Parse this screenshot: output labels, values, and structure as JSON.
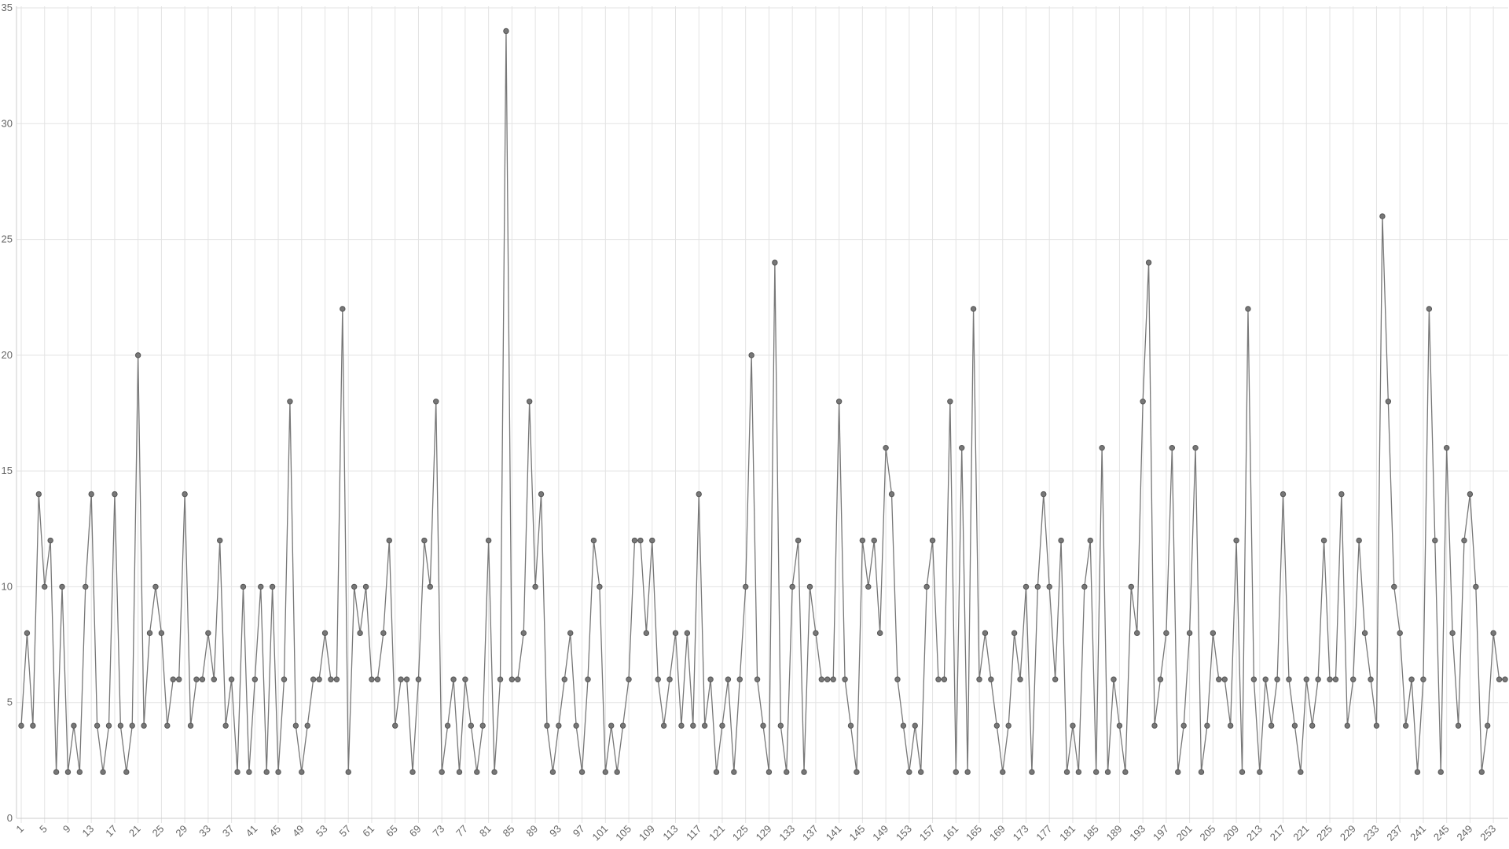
{
  "chart_data": {
    "type": "line",
    "x": [
      1,
      2,
      3,
      4,
      5,
      6,
      7,
      8,
      9,
      10,
      11,
      12,
      13,
      14,
      15,
      16,
      17,
      18,
      19,
      20,
      21,
      22,
      23,
      24,
      25,
      26,
      27,
      28,
      29,
      30,
      31,
      32,
      33,
      34,
      35,
      36,
      37,
      38,
      39,
      40,
      41,
      42,
      43,
      44,
      45,
      46,
      47,
      48,
      49,
      50,
      51,
      52,
      53,
      54,
      55,
      56,
      57,
      58,
      59,
      60,
      61,
      62,
      63,
      64,
      65,
      66,
      67,
      68,
      69,
      70,
      71,
      72,
      73,
      74,
      75,
      76,
      77,
      78,
      79,
      80,
      81,
      82,
      83,
      84,
      85,
      86,
      87,
      88,
      89,
      90,
      91,
      92,
      93,
      94,
      95,
      96,
      97,
      98,
      99,
      100,
      101,
      102,
      103,
      104,
      105,
      106,
      107,
      108,
      109,
      110,
      111,
      112,
      113,
      114,
      115,
      116,
      117,
      118,
      119,
      120,
      121,
      122,
      123,
      124,
      125,
      126,
      127,
      128,
      129,
      130,
      131,
      132,
      133,
      134,
      135,
      136,
      137,
      138,
      139,
      140,
      141,
      142,
      143,
      144,
      145,
      146,
      147,
      148,
      149,
      150,
      151,
      152,
      153,
      154,
      155,
      156,
      157,
      158,
      159,
      160,
      161,
      162,
      163,
      164,
      165,
      166,
      167,
      168,
      169,
      170,
      171,
      172,
      173,
      174,
      175,
      176,
      177,
      178,
      179,
      180,
      181,
      182,
      183,
      184,
      185,
      186,
      187,
      188,
      189,
      190,
      191,
      192,
      193,
      194,
      195,
      196,
      197,
      198,
      199,
      200,
      201,
      202,
      203,
      204,
      205,
      206,
      207,
      208,
      209,
      210,
      211,
      212,
      213,
      214,
      215,
      216,
      217,
      218,
      219,
      220,
      221,
      222,
      223,
      224,
      225,
      226,
      227,
      228,
      229,
      230,
      231,
      232,
      233,
      234,
      235,
      236,
      237,
      238,
      239,
      240,
      241,
      242,
      243,
      244,
      245,
      246,
      247,
      248,
      249,
      250,
      251,
      252,
      253,
      254,
      255
    ],
    "series": [
      {
        "color": "#777777",
        "values": [
          4,
          8,
          4,
          14,
          10,
          12,
          2,
          10,
          2,
          4,
          2,
          10,
          14,
          4,
          2,
          4,
          14,
          4,
          2,
          4,
          20,
          4,
          8,
          10,
          8,
          4,
          6,
          6,
          14,
          4,
          6,
          6,
          8,
          6,
          12,
          4,
          6,
          2,
          10,
          2,
          6,
          10,
          2,
          10,
          2,
          6,
          18,
          4,
          2,
          4,
          6,
          6,
          8,
          6,
          6,
          22,
          2,
          10,
          8,
          10,
          6,
          6,
          8,
          12,
          4,
          6,
          6,
          2,
          6,
          12,
          10,
          18,
          2,
          4,
          6,
          2,
          6,
          4,
          2,
          4,
          12,
          2,
          6,
          34,
          6,
          6,
          8,
          18,
          10,
          14,
          4,
          2,
          4,
          6,
          8,
          4,
          2,
          6,
          12,
          10,
          2,
          4,
          2,
          4,
          6,
          12,
          12,
          8,
          12,
          6,
          4,
          6,
          8,
          4,
          8,
          4,
          14,
          4,
          6,
          2,
          4,
          6,
          2,
          6,
          10,
          20,
          6,
          4,
          2,
          24,
          4,
          2,
          10,
          12,
          2,
          10,
          8,
          6,
          6,
          6,
          18,
          6,
          4,
          2,
          12,
          10,
          12,
          8,
          16,
          14,
          6,
          4,
          2,
          4,
          2,
          10,
          12,
          6,
          6,
          18,
          2,
          16,
          2,
          22,
          6,
          8,
          6,
          4,
          2,
          4,
          8,
          6,
          10,
          2,
          10,
          14,
          10,
          6,
          12,
          2,
          4,
          2,
          10,
          12,
          2,
          16,
          2,
          6,
          4,
          2,
          10,
          8,
          18,
          24,
          4,
          6,
          8,
          16,
          2,
          4,
          8,
          16,
          2,
          4,
          8,
          6,
          6,
          4,
          12,
          2,
          22,
          6,
          2,
          6,
          4,
          6,
          14,
          6,
          4,
          2,
          6,
          4,
          6,
          12,
          6,
          6,
          14,
          4,
          6,
          12,
          8,
          6,
          4,
          26,
          18,
          10,
          8,
          4,
          6,
          2,
          6,
          22,
          12,
          2,
          16,
          8,
          4,
          12,
          14,
          10,
          2,
          4,
          8,
          6,
          6
        ]
      }
    ],
    "xlim": [
      1,
      255
    ],
    "xticks": [
      1,
      5,
      9,
      13,
      17,
      21,
      25,
      29,
      33,
      37,
      41,
      45,
      49,
      53,
      57,
      61,
      65,
      69,
      73,
      77,
      81,
      85,
      89,
      93,
      97,
      101,
      105,
      109,
      113,
      117,
      121,
      125,
      129,
      133,
      137,
      141,
      145,
      149,
      153,
      157,
      161,
      165,
      169,
      173,
      177,
      181,
      185,
      189,
      193,
      197,
      201,
      205,
      209,
      213,
      217,
      221,
      225,
      229,
      233,
      237,
      241,
      245,
      249,
      253
    ],
    "ylim": [
      0,
      35
    ],
    "yticks": [
      0,
      5,
      10,
      15,
      20,
      25,
      30,
      35
    ],
    "grid": true
  }
}
